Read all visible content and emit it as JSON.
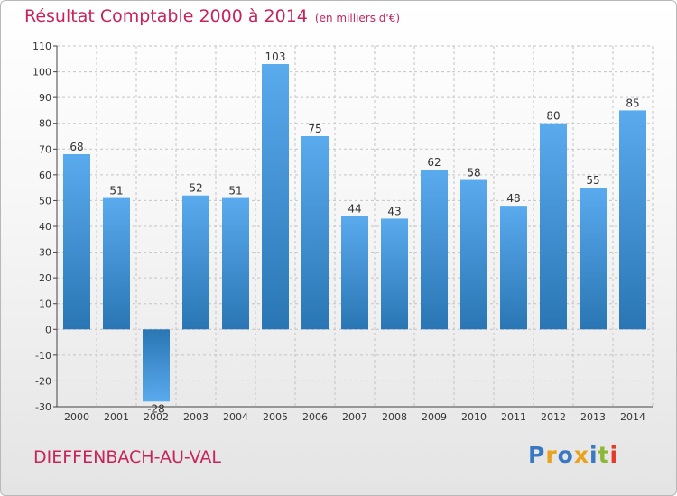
{
  "header": {
    "title": "Résultat Comptable 2000 à 2014",
    "subtitle": "(en milliers d'€)"
  },
  "footer": {
    "place": "DIEFFENBACH-AU-VAL",
    "logo_text": "Proxiti",
    "logo_colors": [
      "#3a78c2",
      "#e8a21c",
      "#3a78c2",
      "#e8a21c",
      "#3a78c2",
      "#8ab836",
      "#e53a2a"
    ]
  },
  "chart_data": {
    "type": "bar",
    "title": "Résultat Comptable 2000 à 2014",
    "subtitle": "(en milliers d'€)",
    "xlabel": "",
    "ylabel": "",
    "categories": [
      "2000",
      "2001",
      "2002",
      "2003",
      "2004",
      "2005",
      "2006",
      "2007",
      "2008",
      "2009",
      "2010",
      "2011",
      "2012",
      "2013",
      "2014"
    ],
    "values": [
      68,
      51,
      -28,
      52,
      51,
      103,
      75,
      44,
      43,
      62,
      58,
      48,
      80,
      55,
      85
    ],
    "ylim": [
      -30,
      110
    ],
    "yticks": [
      -30,
      -20,
      -10,
      0,
      10,
      20,
      30,
      40,
      50,
      60,
      70,
      80,
      90,
      100,
      110
    ],
    "grid": true,
    "colors": {
      "bar_light": "#5aaaee",
      "bar_dark": "#2a76b4",
      "grid": "#c4c4c4",
      "axis": "#444444",
      "text": "#333333"
    }
  }
}
